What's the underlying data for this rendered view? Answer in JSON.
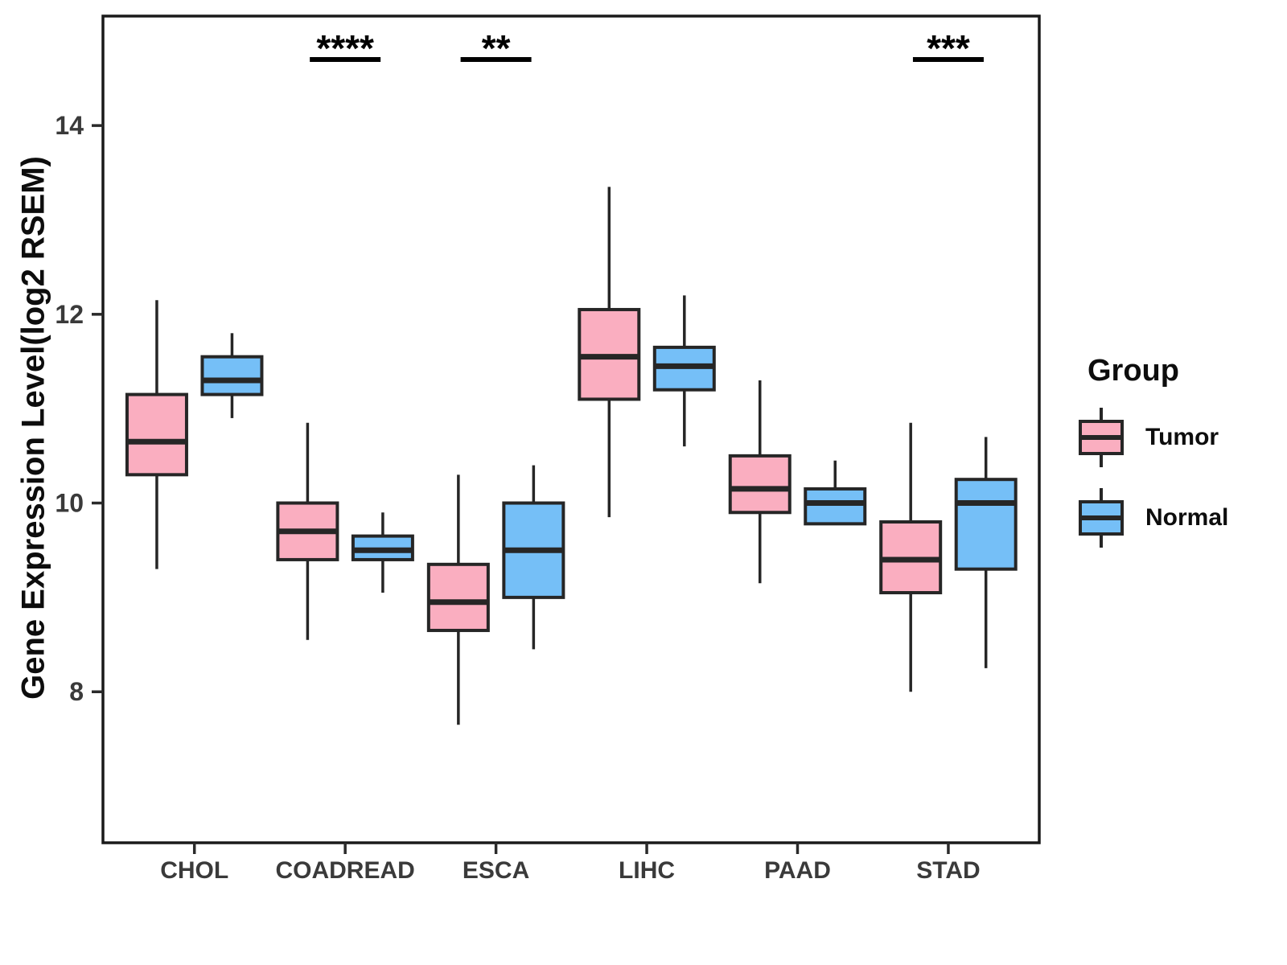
{
  "figure": {
    "background": "#ffffff",
    "panel_border_color": "#1a1a1a",
    "box_stroke_color": "#262626",
    "tick_color": "#2a2a2a",
    "significance_color": "#000000"
  },
  "legend": {
    "title": "Group",
    "items": [
      {
        "label": "Tumor",
        "color": "#FAAEC0"
      },
      {
        "label": "Normal",
        "color": "#75BFF7"
      }
    ]
  },
  "chart_data": {
    "type": "boxplot",
    "title": "",
    "xlabel": "",
    "ylabel": "Gene Expression Level(log2 RSEM)",
    "ylim": [
      6.4,
      15.16
    ],
    "yticks": [
      8,
      10,
      12,
      14
    ],
    "grid": false,
    "legend_position": "right",
    "categories": [
      "CHOL",
      "COADREAD",
      "ESCA",
      "LIHC",
      "PAAD",
      "STAD"
    ],
    "series": [
      {
        "name": "Tumor",
        "color": "#FAAEC0",
        "boxes": [
          {
            "category": "CHOL",
            "min": 9.3,
            "q1": 10.3,
            "median": 10.65,
            "q3": 11.15,
            "max": 12.15
          },
          {
            "category": "COADREAD",
            "min": 8.55,
            "q1": 9.4,
            "median": 9.7,
            "q3": 10.0,
            "max": 10.85
          },
          {
            "category": "ESCA",
            "min": 7.65,
            "q1": 8.65,
            "median": 8.95,
            "q3": 9.35,
            "max": 10.3
          },
          {
            "category": "LIHC",
            "min": 9.85,
            "q1": 11.1,
            "median": 11.55,
            "q3": 12.05,
            "max": 13.35
          },
          {
            "category": "PAAD",
            "min": 9.15,
            "q1": 9.9,
            "median": 10.15,
            "q3": 10.5,
            "max": 11.3
          },
          {
            "category": "STAD",
            "min": 8.0,
            "q1": 9.05,
            "median": 9.4,
            "q3": 9.8,
            "max": 10.85
          }
        ]
      },
      {
        "name": "Normal",
        "color": "#75BFF7",
        "boxes": [
          {
            "category": "CHOL",
            "min": 10.9,
            "q1": 11.15,
            "median": 11.3,
            "q3": 11.55,
            "max": 11.8
          },
          {
            "category": "COADREAD",
            "min": 9.05,
            "q1": 9.4,
            "median": 9.5,
            "q3": 9.65,
            "max": 9.9
          },
          {
            "category": "ESCA",
            "min": 8.45,
            "q1": 9.0,
            "median": 9.5,
            "q3": 10.0,
            "max": 10.4
          },
          {
            "category": "LIHC",
            "min": 10.6,
            "q1": 11.2,
            "median": 11.45,
            "q3": 11.65,
            "max": 12.2
          },
          {
            "category": "PAAD",
            "min": 9.78,
            "q1": 9.78,
            "median": 10.0,
            "q3": 10.15,
            "max": 10.45
          },
          {
            "category": "STAD",
            "min": 8.25,
            "q1": 9.3,
            "median": 10.0,
            "q3": 10.25,
            "max": 10.7
          }
        ]
      }
    ],
    "annotations": [
      {
        "category": "COADREAD",
        "label": "****"
      },
      {
        "category": "ESCA",
        "label": "**"
      },
      {
        "category": "STAD",
        "label": "***"
      }
    ]
  }
}
